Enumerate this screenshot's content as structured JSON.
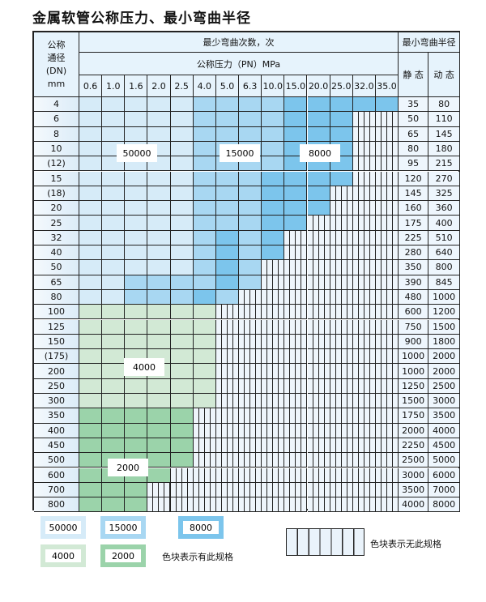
{
  "title": "金属软管公称压力、最小弯曲半径",
  "header": {
    "dn_label": [
      "公称",
      "通径",
      "(DN)",
      "mm"
    ],
    "cycles_label": "最少弯曲次数，次",
    "pressure_label": "公称压力（PN）MPa",
    "radius_label": "最小弯曲半径",
    "static_label": "静 态",
    "dynamic_label": "动 态",
    "pressures": [
      "0.6",
      "1.0",
      "1.6",
      "2.0",
      "2.5",
      "4.0",
      "5.0",
      "6.3",
      "10.0",
      "15.0",
      "20.0",
      "25.0",
      "32.0",
      "35.0"
    ]
  },
  "levels": [
    {
      "cycles": "50000",
      "color": "#d6ebf8"
    },
    {
      "cycles": "15000",
      "color": "#a8d7f2"
    },
    {
      "cycles": "8000",
      "color": "#7cc5ec"
    },
    {
      "cycles": "4000",
      "color": "#d2e9d5"
    },
    {
      "cycles": "2000",
      "color": "#9bd3aa"
    }
  ],
  "rows": [
    {
      "dn": "4",
      "static": "35",
      "dynamic": "80",
      "cells": [
        0,
        0,
        0,
        0,
        0,
        1,
        1,
        1,
        1,
        2,
        2,
        2,
        2,
        2
      ]
    },
    {
      "dn": "6",
      "static": "50",
      "dynamic": "110",
      "cells": [
        0,
        0,
        0,
        0,
        0,
        1,
        1,
        1,
        1,
        2,
        2,
        2
      ]
    },
    {
      "dn": "8",
      "static": "65",
      "dynamic": "145",
      "cells": [
        0,
        0,
        0,
        0,
        0,
        1,
        1,
        1,
        1,
        2,
        2,
        2
      ]
    },
    {
      "dn": "10",
      "static": "80",
      "dynamic": "180",
      "cells": [
        0,
        0,
        0,
        0,
        0,
        1,
        1,
        1,
        1,
        2,
        2,
        2
      ]
    },
    {
      "dn": "(12)",
      "static": "95",
      "dynamic": "215",
      "cells": [
        0,
        0,
        0,
        0,
        0,
        1,
        1,
        1,
        1,
        2,
        2,
        2
      ]
    },
    {
      "dn": "15",
      "static": "120",
      "dynamic": "270",
      "cells": [
        0,
        0,
        0,
        0,
        0,
        1,
        1,
        1,
        2,
        2,
        2,
        2
      ]
    },
    {
      "dn": "(18)",
      "static": "145",
      "dynamic": "325",
      "cells": [
        0,
        0,
        0,
        0,
        0,
        1,
        1,
        1,
        2,
        2,
        2
      ]
    },
    {
      "dn": "20",
      "static": "160",
      "dynamic": "360",
      "cells": [
        0,
        0,
        0,
        0,
        0,
        1,
        1,
        1,
        2,
        2,
        2
      ]
    },
    {
      "dn": "25",
      "static": "175",
      "dynamic": "400",
      "cells": [
        0,
        0,
        0,
        0,
        0,
        1,
        1,
        1,
        2,
        2
      ]
    },
    {
      "dn": "32",
      "static": "225",
      "dynamic": "510",
      "cells": [
        0,
        0,
        0,
        0,
        0,
        1,
        2,
        1,
        2
      ]
    },
    {
      "dn": "40",
      "static": "280",
      "dynamic": "640",
      "cells": [
        0,
        0,
        0,
        0,
        0,
        1,
        2,
        1,
        2
      ]
    },
    {
      "dn": "50",
      "static": "350",
      "dynamic": "800",
      "cells": [
        0,
        0,
        0,
        0,
        0,
        1,
        2,
        1
      ]
    },
    {
      "dn": "65",
      "static": "390",
      "dynamic": "845",
      "cells": [
        0,
        0,
        1,
        1,
        1,
        1,
        2,
        1
      ]
    },
    {
      "dn": "80",
      "static": "480",
      "dynamic": "1000",
      "cells": [
        0,
        0,
        1,
        1,
        1,
        2,
        1
      ]
    },
    {
      "dn": "100",
      "static": "600",
      "dynamic": "1200",
      "cells": [
        3,
        3,
        3,
        3,
        3,
        3
      ]
    },
    {
      "dn": "125",
      "static": "750",
      "dynamic": "1500",
      "cells": [
        3,
        3,
        3,
        3,
        3,
        3
      ]
    },
    {
      "dn": "150",
      "static": "900",
      "dynamic": "1800",
      "cells": [
        3,
        3,
        3,
        3,
        3,
        3
      ]
    },
    {
      "dn": "(175)",
      "static": "1000",
      "dynamic": "2000",
      "cells": [
        3,
        3,
        3,
        3,
        3,
        3
      ]
    },
    {
      "dn": "200",
      "static": "1000",
      "dynamic": "2000",
      "cells": [
        3,
        3,
        3,
        3,
        3,
        3
      ]
    },
    {
      "dn": "250",
      "static": "1250",
      "dynamic": "2500",
      "cells": [
        3,
        3,
        3,
        3,
        3,
        3
      ]
    },
    {
      "dn": "300",
      "static": "1500",
      "dynamic": "3000",
      "cells": [
        3,
        3,
        3,
        3,
        3,
        3
      ]
    },
    {
      "dn": "350",
      "static": "1750",
      "dynamic": "3500",
      "cells": [
        4,
        4,
        4,
        4,
        4
      ]
    },
    {
      "dn": "400",
      "static": "2000",
      "dynamic": "4000",
      "cells": [
        4,
        4,
        4,
        4,
        4
      ]
    },
    {
      "dn": "450",
      "static": "2250",
      "dynamic": "4500",
      "cells": [
        4,
        4,
        4,
        4,
        4
      ]
    },
    {
      "dn": "500",
      "static": "2500",
      "dynamic": "5000",
      "cells": [
        4,
        4,
        4,
        4,
        4
      ]
    },
    {
      "dn": "600",
      "static": "3000",
      "dynamic": "6000",
      "cells": [
        4,
        4,
        4,
        4
      ]
    },
    {
      "dn": "700",
      "static": "3500",
      "dynamic": "7000",
      "cells": [
        4,
        4,
        4
      ]
    },
    {
      "dn": "800",
      "static": "4000",
      "dynamic": "8000",
      "cells": [
        4,
        4,
        4
      ]
    }
  ],
  "zone_labels": [
    "50000",
    "15000",
    "8000",
    "4000",
    "2000"
  ],
  "legend": {
    "items": [
      "50000",
      "15000",
      "8000",
      "4000",
      "2000"
    ],
    "has_spec_text": "色块表示有此规格",
    "no_spec_text": "色块表示无此规格"
  }
}
